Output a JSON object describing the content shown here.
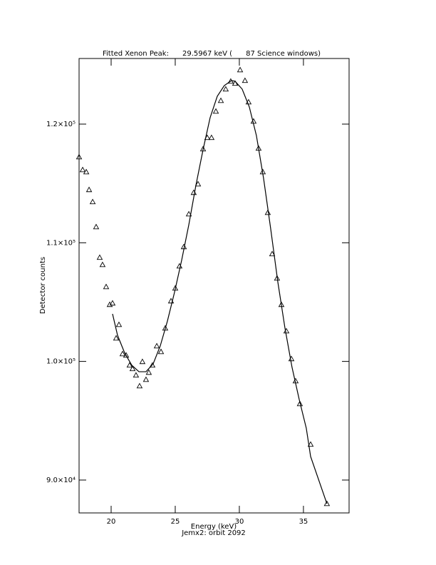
{
  "chart_data": {
    "type": "scatter",
    "title": "Fitted Xenon Peak:      29.5967 keV (      87 Science windows)",
    "x_label": "Energy (keV)",
    "subtitle": "Jemx2: orbit 2092",
    "y_label": "Detector counts",
    "xlim": [
      17.5,
      38.56
    ],
    "ylim": [
      87230,
      125530
    ],
    "xticks": [
      20,
      25,
      30,
      35
    ],
    "yticks": [
      {
        "value": 90000,
        "label": "9.0×10⁴"
      },
      {
        "value": 100000,
        "label": "1.0×10⁵"
      },
      {
        "value": 110000,
        "label": "1.1×10⁵"
      },
      {
        "value": 120000,
        "label": "1.2×10⁵"
      }
    ],
    "color": "#000000",
    "series": [
      {
        "type": "scatter",
        "color": "#000000",
        "x": [
          17.5,
          17.78,
          18.06,
          18.28,
          18.56,
          18.83,
          19.11,
          19.33,
          19.61,
          19.89,
          20.11,
          20.39,
          20.61,
          20.89,
          21.17,
          21.44,
          21.67,
          21.94,
          22.22,
          22.44,
          22.72,
          22.94,
          23.22,
          23.56,
          23.89,
          24.22,
          24.67,
          25.0,
          25.33,
          25.67,
          26.06,
          26.44,
          26.78,
          27.17,
          27.5,
          27.83,
          28.17,
          28.56,
          28.94,
          29.33,
          29.67,
          30.06,
          30.44,
          30.72,
          31.11,
          31.5,
          31.83,
          32.22,
          32.56,
          32.94,
          33.28,
          33.67,
          34.06,
          34.39,
          34.72,
          35.56,
          36.83
        ],
        "values": [
          117230,
          116150,
          115970,
          114470,
          113450,
          111340,
          108760,
          108150,
          106290,
          104790,
          104910,
          101960,
          103100,
          100640,
          100520,
          99680,
          99380,
          98840,
          97930,
          99980,
          98470,
          99070,
          99680,
          101300,
          100820,
          102800,
          105090,
          106170,
          108030,
          109660,
          112420,
          114230,
          114950,
          117900,
          118860,
          118860,
          121080,
          121980,
          122950,
          123610,
          123430,
          124570,
          123670,
          121860,
          120240,
          117960,
          115970,
          112540,
          109060,
          107010,
          104790,
          102560,
          100220,
          98350,
          96430,
          93010,
          88010
        ]
      },
      {
        "type": "line",
        "color": "#000000",
        "x": [
          20.11,
          20.5,
          21.06,
          21.61,
          22.17,
          22.72,
          23.28,
          23.83,
          24.39,
          24.94,
          25.5,
          26.06,
          26.61,
          27.17,
          27.72,
          28.28,
          28.83,
          29.39,
          29.67,
          30.22,
          30.78,
          31.33,
          31.89,
          32.44,
          33.0,
          33.56,
          34.11,
          34.67,
          35.22,
          35.56,
          36.83
        ],
        "values": [
          104006,
          102200,
          100700,
          99680,
          99130,
          99130,
          99800,
          101300,
          103400,
          105810,
          108520,
          111520,
          114830,
          117840,
          120540,
          122350,
          123250,
          123670,
          123610,
          122950,
          121440,
          119040,
          115430,
          111220,
          106710,
          102800,
          99500,
          96790,
          94380,
          91980,
          88010
        ]
      }
    ]
  }
}
